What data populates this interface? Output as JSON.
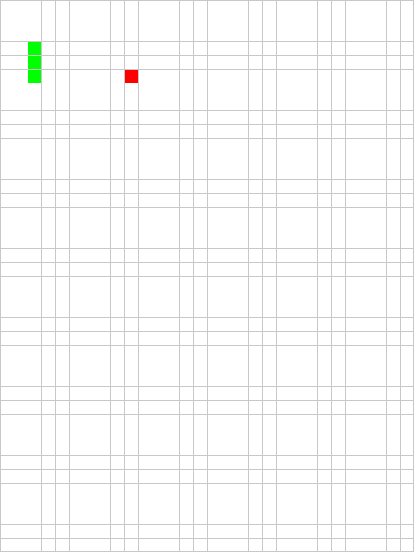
{
  "game": {
    "grid": {
      "columns": 30,
      "rows": 40,
      "line_color": "#c8c8c8",
      "background_color": "#ffffff"
    },
    "snake": {
      "color": "#00ff00",
      "segments": [
        {
          "col": 2,
          "row": 3
        },
        {
          "col": 2,
          "row": 4
        },
        {
          "col": 2,
          "row": 5
        }
      ]
    },
    "food": {
      "color": "#ff0000",
      "col": 9,
      "row": 5
    }
  }
}
